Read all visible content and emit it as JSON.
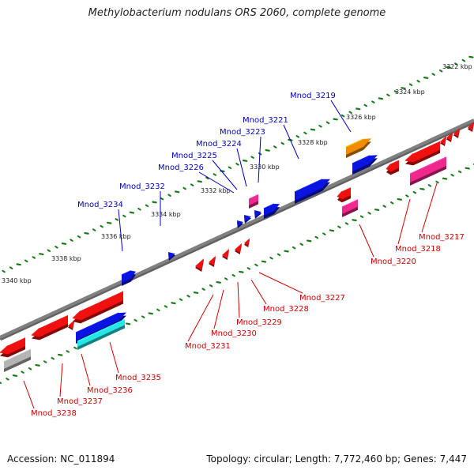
{
  "title": "Methylobacterium nodulans ORS 2060, complete genome",
  "footer": {
    "accession": "Accession: NC_011894",
    "topology": "Topology: circular; Length: 7,772,460 bp; Genes: 7,447"
  },
  "axis": {
    "ticks": [
      "3322 kbp",
      "3324 kbp",
      "3326 kbp",
      "3328 kbp",
      "3330 kbp",
      "3332 kbp",
      "3334 kbp",
      "3336 kbp",
      "3338 kbp",
      "3340 kbp"
    ]
  },
  "colors": {
    "blue": "#0a14e0",
    "red": "#f01010",
    "orange": "#f08c00",
    "pink": "#f0288c",
    "gray": "#b4b4b4",
    "cyan": "#28e6e6",
    "backbone": "#808080",
    "tick_mark": "#1a7a1a",
    "label_blue": "#0000c0",
    "label_red": "#d00000"
  },
  "genes": [
    {
      "name": "Mnod_3217",
      "strand": "-"
    },
    {
      "name": "Mnod_3218",
      "strand": "-"
    },
    {
      "name": "Mnod_3219",
      "strand": "+"
    },
    {
      "name": "Mnod_3220",
      "strand": "-"
    },
    {
      "name": "Mnod_3221",
      "strand": "+"
    },
    {
      "name": "Mnod_3223",
      "strand": "+"
    },
    {
      "name": "Mnod_3224",
      "strand": "+"
    },
    {
      "name": "Mnod_3225",
      "strand": "+"
    },
    {
      "name": "Mnod_3226",
      "strand": "+"
    },
    {
      "name": "Mnod_3227",
      "strand": "-"
    },
    {
      "name": "Mnod_3228",
      "strand": "-"
    },
    {
      "name": "Mnod_3229",
      "strand": "-"
    },
    {
      "name": "Mnod_3230",
      "strand": "-"
    },
    {
      "name": "Mnod_3231",
      "strand": "-"
    },
    {
      "name": "Mnod_3232",
      "strand": "+"
    },
    {
      "name": "Mnod_3234",
      "strand": "+"
    },
    {
      "name": "Mnod_3235",
      "strand": "-"
    },
    {
      "name": "Mnod_3236",
      "strand": "-"
    },
    {
      "name": "Mnod_3237",
      "strand": "-"
    },
    {
      "name": "Mnod_3238",
      "strand": "-"
    }
  ]
}
